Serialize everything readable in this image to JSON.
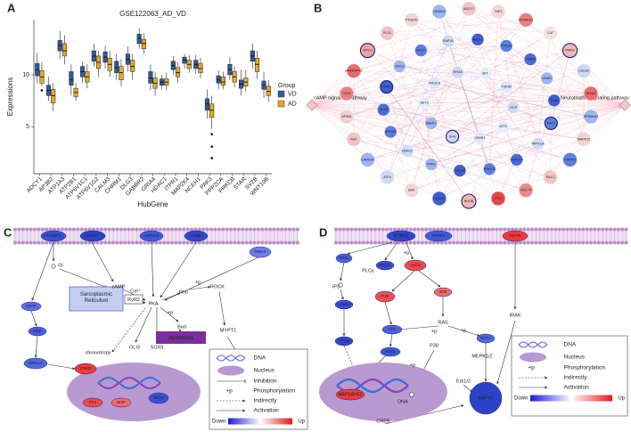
{
  "chart_data": {
    "type": "box",
    "panel_label": "A",
    "title": "GSE122063_AD_VD",
    "xlabel": "HubGene",
    "ylabel": "Expressions",
    "legend_title": "Group",
    "categories": [
      "ADCY1",
      "AP3B2",
      "ATP1A3",
      "ATP2B1",
      "ATP6V1C1",
      "ATP6V1G2",
      "CALM3",
      "CHRM1",
      "DLG3",
      "GABBR2",
      "GRIA4",
      "HDAC1",
      "ITPR1",
      "MAP2K4",
      "NCEH1",
      "PAK3",
      "PPP2CA",
      "PRKCB",
      "STAR",
      "SV2B",
      "WNT10B"
    ],
    "series": [
      {
        "name": "VD",
        "color": "#2f5c9c",
        "values": [
          [
            9.2,
            9.9,
            10.5,
            11.1,
            12.1
          ],
          [
            7.5,
            8.0,
            8.5,
            9.0,
            9.8
          ],
          [
            11.5,
            12.3,
            12.8,
            13.3,
            14.2
          ],
          [
            8.0,
            9.0,
            9.5,
            10.3,
            11.0
          ],
          [
            9.2,
            9.8,
            10.3,
            10.8,
            11.3
          ],
          [
            10.8,
            11.3,
            11.8,
            12.3,
            13.0
          ],
          [
            10.6,
            11.2,
            11.7,
            12.2,
            12.8
          ],
          [
            9.5,
            10.2,
            10.7,
            11.3,
            12.0
          ],
          [
            10.3,
            11.0,
            11.5,
            12.0,
            12.7
          ],
          [
            12.5,
            13.0,
            13.5,
            13.9,
            14.5
          ],
          [
            8.5,
            9.2,
            9.7,
            10.3,
            11.0
          ],
          [
            8.6,
            9.0,
            9.3,
            9.6,
            10.0
          ],
          [
            10.0,
            10.5,
            10.9,
            11.3,
            11.8
          ],
          [
            10.6,
            11.1,
            11.4,
            11.7,
            12.0
          ],
          [
            10.1,
            10.6,
            11.0,
            11.4,
            11.9
          ],
          [
            5.8,
            6.6,
            7.2,
            7.7,
            8.6
          ],
          [
            8.6,
            9.2,
            9.5,
            9.9,
            10.4
          ],
          [
            9.5,
            10.0,
            10.5,
            11.0,
            11.7
          ],
          [
            8.0,
            8.7,
            9.1,
            9.5,
            10.5
          ],
          [
            10.6,
            11.3,
            11.8,
            12.3,
            13.0
          ],
          [
            7.8,
            8.6,
            9.0,
            9.4,
            10.3
          ]
        ],
        "outliers": [
          [],
          [],
          [],
          [],
          [],
          [],
          [],
          [],
          [],
          [],
          [],
          [],
          [],
          [],
          [],
          [],
          [],
          [],
          [],
          [],
          []
        ]
      },
      {
        "name": "AD",
        "color": "#e3a82b",
        "values": [
          [
            8.9,
            9.2,
            9.8,
            10.4,
            11.2
          ],
          [
            6.5,
            7.3,
            8.0,
            8.6,
            9.2
          ],
          [
            11.0,
            11.8,
            12.3,
            13.0,
            13.8
          ],
          [
            7.5,
            7.9,
            8.3,
            8.7,
            9.2
          ],
          [
            8.7,
            9.3,
            9.8,
            10.3,
            11.0
          ],
          [
            9.8,
            10.6,
            11.2,
            11.8,
            12.3
          ],
          [
            9.8,
            10.4,
            11.0,
            11.6,
            12.3
          ],
          [
            8.9,
            9.5,
            10.2,
            10.8,
            11.5
          ],
          [
            9.5,
            10.3,
            10.8,
            11.4,
            12.0
          ],
          [
            12.0,
            12.5,
            13.0,
            13.4,
            14.0
          ],
          [
            8.0,
            8.7,
            9.2,
            9.7,
            10.3
          ],
          [
            8.5,
            9.0,
            9.3,
            9.6,
            10.2
          ],
          [
            9.2,
            9.8,
            10.2,
            10.7,
            11.2
          ],
          [
            10.2,
            10.6,
            11.0,
            11.4,
            11.9
          ],
          [
            9.7,
            10.2,
            10.6,
            11.1,
            11.6
          ],
          [
            4.8,
            5.9,
            6.6,
            7.2,
            8.0
          ],
          [
            8.6,
            9.0,
            9.3,
            9.8,
            10.3
          ],
          [
            8.8,
            9.3,
            9.8,
            10.3,
            10.8
          ],
          [
            8.4,
            8.9,
            9.3,
            9.7,
            10.5
          ],
          [
            9.6,
            10.3,
            11.0,
            11.6,
            12.3
          ],
          [
            7.4,
            8.0,
            8.4,
            8.9,
            9.5
          ]
        ],
        "outliers": [
          [
            8.5
          ],
          [],
          [],
          [],
          [],
          [],
          [],
          [],
          [],
          [],
          [],
          [],
          [],
          [],
          [],
          [
            4.3,
            3.1,
            2.0
          ],
          [],
          [],
          [],
          [],
          []
        ]
      }
    ],
    "ylim": [
      0.5,
      15.3
    ],
    "yticks": [
      5,
      10
    ]
  },
  "network": {
    "panel_label": "B",
    "left_hub": "cAMP signaling pathway",
    "right_hub": "Neurotrophin signaling pathway",
    "nodes": [
      {
        "label": "ADCY7",
        "color": "#f2c4c4"
      },
      {
        "label": "TAP1",
        "color": "#f5d6d6"
      },
      {
        "label": "RPS6KA5",
        "color": "#e98080"
      },
      {
        "label": "CAT",
        "color": "#f7e0e0"
      },
      {
        "label": "PRKX",
        "color": "#f2b5b5"
      },
      {
        "label": "CALM2",
        "color": "#cfd9f5"
      },
      {
        "label": "IRAK4",
        "color": "#e86a6a"
      },
      {
        "label": "RPS6KA3",
        "color": "#9db4f0"
      },
      {
        "label": "MAPK12",
        "color": "#f5d0d0"
      },
      {
        "label": "PIK3R2",
        "color": "#5b7fe0"
      },
      {
        "label": "RAC1",
        "color": "#f2c4c4"
      },
      {
        "label": "ADCY4",
        "color": "#e98a8a"
      },
      {
        "label": "FOS",
        "color": "#e04a4a"
      },
      {
        "label": "RHOB",
        "color": "#f2b5b5"
      },
      {
        "label": "SOX9",
        "color": "#3e5fd0"
      },
      {
        "label": "BAX",
        "color": "#f5d6d6"
      },
      {
        "label": "ATF4",
        "color": "#cfd9f5"
      },
      {
        "label": "CAMK2A",
        "color": "#9db4f0"
      },
      {
        "label": "NGF",
        "color": "#f2c4c4"
      },
      {
        "label": "NFKB1",
        "color": "#f5d0d0"
      },
      {
        "label": "SOS1",
        "color": "#e98080"
      },
      {
        "label": "MAPKAPK2",
        "color": "#e86a6a"
      },
      {
        "label": "MYL9",
        "color": "#f0a0a0"
      },
      {
        "label": "PLD1",
        "color": "#f2c4c4"
      },
      {
        "label": "PTGER2",
        "color": "#f5d6d6"
      },
      {
        "label": "GRIN2A",
        "color": "#9db4f0"
      },
      {
        "label": "ADCY1",
        "color": "#3e5fd0"
      },
      {
        "label": "ATP1A3",
        "color": "#5b7fe0"
      },
      {
        "label": "CHRM1",
        "color": "#4a6cd8"
      },
      {
        "label": "GNAI1",
        "color": "#9db4f0"
      },
      {
        "label": "GRIA4",
        "color": "#3e5fd0"
      },
      {
        "label": "PAK3",
        "color": "#5b7fe0"
      },
      {
        "label": "PPP1CA",
        "color": "#cfd9f5"
      },
      {
        "label": "MAP2K4",
        "color": "#4a6cd8"
      },
      {
        "label": "PRKCB",
        "color": "#5b7fe0"
      },
      {
        "label": "CALM3",
        "color": "#3e5fd0"
      },
      {
        "label": "ITPR1",
        "color": "#9db4f0"
      },
      {
        "label": "HDAC1",
        "color": "#cfd9f5"
      },
      {
        "label": "ATP2B1",
        "color": "#5b7fe0"
      },
      {
        "label": "DLG3",
        "color": "#4a6cd8"
      },
      {
        "label": "NTRK2",
        "color": "#3e5fd0"
      },
      {
        "label": "SHC3",
        "color": "#9db4f0"
      },
      {
        "label": "BRAF",
        "color": "#5b7fe0"
      },
      {
        "label": "RAP1A",
        "color": "#cfd9f5"
      },
      {
        "label": "SP1",
        "color": "#e7ecfa"
      },
      {
        "label": "TGFB2",
        "color": "#dfe6f8"
      },
      {
        "label": "GLI3",
        "color": "#cfd9f5"
      },
      {
        "label": "ATF2",
        "color": "#e7ecfa"
      },
      {
        "label": "CREB1",
        "color": "#dfe6f8"
      },
      {
        "label": "SHH",
        "color": "#cfd9f5"
      },
      {
        "label": "MAPK1",
        "color": "#9db4f0"
      },
      {
        "label": "AKT3",
        "color": "#e7ecfa"
      },
      {
        "label": "PIK3CA",
        "color": "#dfe6f8"
      },
      {
        "label": "RHOA",
        "color": "#cfd9f5"
      }
    ]
  },
  "pathway_c": {
    "panel_label": "C",
    "nodes": [
      {
        "label": "GABBR2",
        "color": "#3a4fd6"
      },
      {
        "label": "ADCY1",
        "color": "#2c43c8"
      },
      {
        "label": "ATP1A3",
        "color": "#4158d8"
      },
      {
        "label": "CHRM1",
        "color": "#3046cc"
      },
      {
        "label": "GRIA4",
        "color": "#6b7ee6"
      },
      {
        "label": "BRAF",
        "color": "#5a6fe0"
      },
      {
        "label": "MEK",
        "color": "#4a5fdc"
      },
      {
        "label": "ERK1/2",
        "color": "#5068de"
      },
      {
        "label": "CREB",
        "color": "#f03a3a"
      },
      {
        "label": "MYL9",
        "color": "#f05050"
      },
      {
        "label": "FOX",
        "color": "#f04848"
      },
      {
        "label": "HHIP",
        "color": "#f26a6a"
      },
      {
        "label": "NKX2",
        "color": "#3a4fd6"
      }
    ],
    "texts": [
      "Gi",
      "cAMP",
      "PKA",
      "Rho",
      "+p",
      "ROCK",
      "MYPT1",
      "Ca²⁺",
      "+p",
      "Bad",
      "GLI3",
      "SOX9",
      "chronotropy"
    ],
    "reticulum": "Sarcoplasmic Reticulum",
    "ryr2": "RyR2",
    "apoptosis": "Apoptosis",
    "legend": {
      "dna": "DNA",
      "nucleus": "Nucleus",
      "inhibition": "Inhibition",
      "phos_symbol": "+p",
      "phosphorylation": "Phosphorylation",
      "indirectly": "Indirectly",
      "activation": "Activation",
      "down": "Down",
      "up": "Up"
    }
  },
  "pathway_d": {
    "panel_label": "D",
    "nodes": [
      {
        "label": "NTRK2",
        "color": "#3046cc"
      },
      {
        "label": "NTRK3",
        "color": "#4158d8"
      },
      {
        "label": "NGFR",
        "color": "#f03a3a"
      },
      {
        "label": "FRS2",
        "color": "#4a5fdc"
      },
      {
        "label": "PLCG1",
        "color": "#3a4fd6"
      },
      {
        "label": "SHC4",
        "color": "#f04848"
      },
      {
        "label": "PI3K",
        "color": "#f05050"
      },
      {
        "label": "SOS",
        "color": "#f26a6a"
      },
      {
        "label": "CAMK2",
        "color": "#3a4fd6"
      },
      {
        "label": "AKT",
        "color": "#4a5fdc"
      },
      {
        "label": "RAP1",
        "color": "#5068de"
      },
      {
        "label": "CALM",
        "color": "#3046cc"
      },
      {
        "label": "PDK1",
        "color": "#4158d8"
      },
      {
        "label": "MAPKAPK2",
        "color": "#f03a3a"
      },
      {
        "label": "MAPK1",
        "color": "#2c43c8"
      }
    ],
    "texts": [
      "PLCγ",
      "+p",
      "IP3",
      "RAS",
      "IRAK",
      "+p",
      "P38",
      "+p",
      "MEPK1/2",
      "Erk1/2",
      "+p",
      "DNA",
      "CREB"
    ],
    "legend": {
      "dna": "DNA",
      "nucleus": "Nucleus",
      "phos_symbol": "+p",
      "phosphorylation": "Phosphorylation",
      "indirectly": "Indirectly",
      "activation": "Activation",
      "down": "Down",
      "up": "Up"
    }
  }
}
